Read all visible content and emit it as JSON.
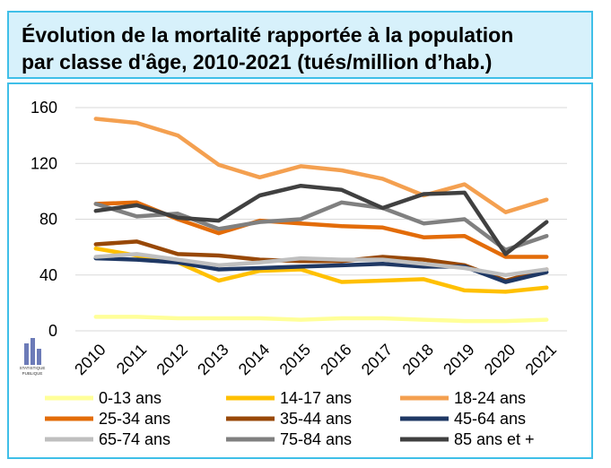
{
  "title_lines": [
    "Évolution de la mortalité rapportée à la population",
    "par classe d'âge, 2010-2021 (tués/million d’hab.)"
  ],
  "logo": {
    "text_top": "STATISTIQUE",
    "text_bottom": "PUBLIQUE"
  },
  "chart_data": {
    "type": "line",
    "title": "Évolution de la mortalité rapportée à la population par classe d'âge, 2010-2021 (tués/million d’hab.)",
    "xlabel": "",
    "ylabel": "",
    "categories": [
      "2010",
      "2011",
      "2012",
      "2013",
      "2014",
      "2015",
      "2016",
      "2017",
      "2018",
      "2019",
      "2020",
      "2021"
    ],
    "yticks": [
      0,
      40,
      80,
      120,
      160
    ],
    "ytick_labels": [
      "0",
      "40",
      "80",
      "120",
      "160"
    ],
    "ylim": [
      0,
      160
    ],
    "grid": true,
    "legend_position": "bottom",
    "series": [
      {
        "name": "0-13 ans",
        "color": "#ffff99",
        "values": [
          10,
          10,
          9,
          9,
          9,
          8,
          9,
          9,
          8,
          7,
          7,
          8
        ]
      },
      {
        "name": "14-17 ans",
        "color": "#ffc000",
        "values": [
          59,
          54,
          49,
          36,
          43,
          44,
          35,
          36,
          37,
          29,
          28,
          31
        ]
      },
      {
        "name": "18-24 ans",
        "color": "#f4a050",
        "values": [
          152,
          149,
          140,
          119,
          110,
          118,
          115,
          109,
          97,
          105,
          85,
          94
        ]
      },
      {
        "name": "25-34 ans",
        "color": "#e36c09",
        "values": [
          91,
          92,
          80,
          70,
          79,
          77,
          75,
          74,
          67,
          68,
          53,
          53
        ]
      },
      {
        "name": "35-44 ans",
        "color": "#984807",
        "values": [
          62,
          64,
          55,
          54,
          51,
          50,
          50,
          53,
          51,
          47,
          36,
          44
        ]
      },
      {
        "name": "45-64 ans",
        "color": "#1f3864",
        "values": [
          52,
          51,
          49,
          44,
          45,
          46,
          47,
          48,
          46,
          46,
          35,
          42
        ]
      },
      {
        "name": "65-74 ans",
        "color": "#bfbfbf",
        "values": [
          53,
          55,
          51,
          47,
          49,
          52,
          51,
          51,
          48,
          45,
          40,
          44
        ]
      },
      {
        "name": "75-84 ans",
        "color": "#808080",
        "values": [
          91,
          82,
          84,
          73,
          78,
          80,
          92,
          88,
          77,
          80,
          58,
          68
        ]
      },
      {
        "name": "85 ans et +",
        "color": "#404040",
        "values": [
          86,
          90,
          81,
          79,
          97,
          104,
          101,
          88,
          98,
          99,
          55,
          78
        ]
      }
    ]
  }
}
